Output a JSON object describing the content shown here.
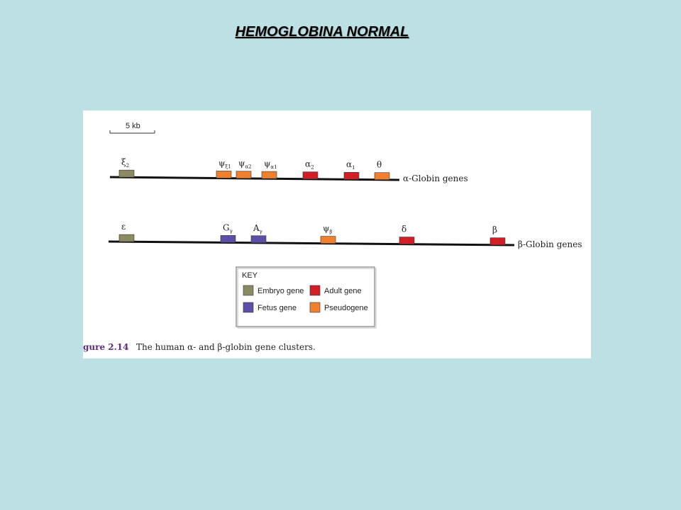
{
  "slide": {
    "title": "HEMOGLOBINA NORMAL"
  },
  "figure": {
    "scale_bar_label": "5 kb",
    "colors": {
      "embryo": "#8b8a63",
      "fetus": "#5b4fa8",
      "adult": "#d21f26",
      "pseudogene": "#f07f2e",
      "caption": "#5a2a80",
      "line": "#111111"
    },
    "alpha_cluster": {
      "label": "α-Globin genes",
      "genes": [
        {
          "symbol": "ξ",
          "sub": "2",
          "type": "embryo"
        },
        {
          "symbol": "ψ",
          "sub": "ξ1",
          "type": "pseudogene"
        },
        {
          "symbol": "ψ",
          "sub": "α2",
          "type": "pseudogene"
        },
        {
          "symbol": "ψ",
          "sub": "α1",
          "type": "pseudogene"
        },
        {
          "symbol": "α",
          "sub": "2",
          "type": "adult"
        },
        {
          "symbol": "α",
          "sub": "1",
          "type": "adult"
        },
        {
          "symbol": "θ",
          "sub": "",
          "type": "pseudogene"
        }
      ]
    },
    "beta_cluster": {
      "label": "β-Globin genes",
      "genes": [
        {
          "symbol": "ε",
          "sub": "",
          "type": "embryo"
        },
        {
          "symbol": "G",
          "sub": "γ",
          "type": "fetus"
        },
        {
          "symbol": "A",
          "sub": "γ",
          "type": "fetus"
        },
        {
          "symbol": "ψ",
          "sub": "β",
          "type": "pseudogene"
        },
        {
          "symbol": "δ",
          "sub": "",
          "type": "adult"
        },
        {
          "symbol": "β",
          "sub": "",
          "type": "adult"
        }
      ]
    },
    "key": {
      "title": "KEY",
      "entries": [
        {
          "label": "Embryo gene",
          "type": "embryo"
        },
        {
          "label": "Adult gene",
          "type": "adult"
        },
        {
          "label": "Fetus gene",
          "type": "fetus"
        },
        {
          "label": "Pseudogene",
          "type": "pseudogene"
        }
      ]
    },
    "caption": {
      "number": "gure 2.14",
      "text": "The human α- and β-globin gene clusters."
    }
  }
}
